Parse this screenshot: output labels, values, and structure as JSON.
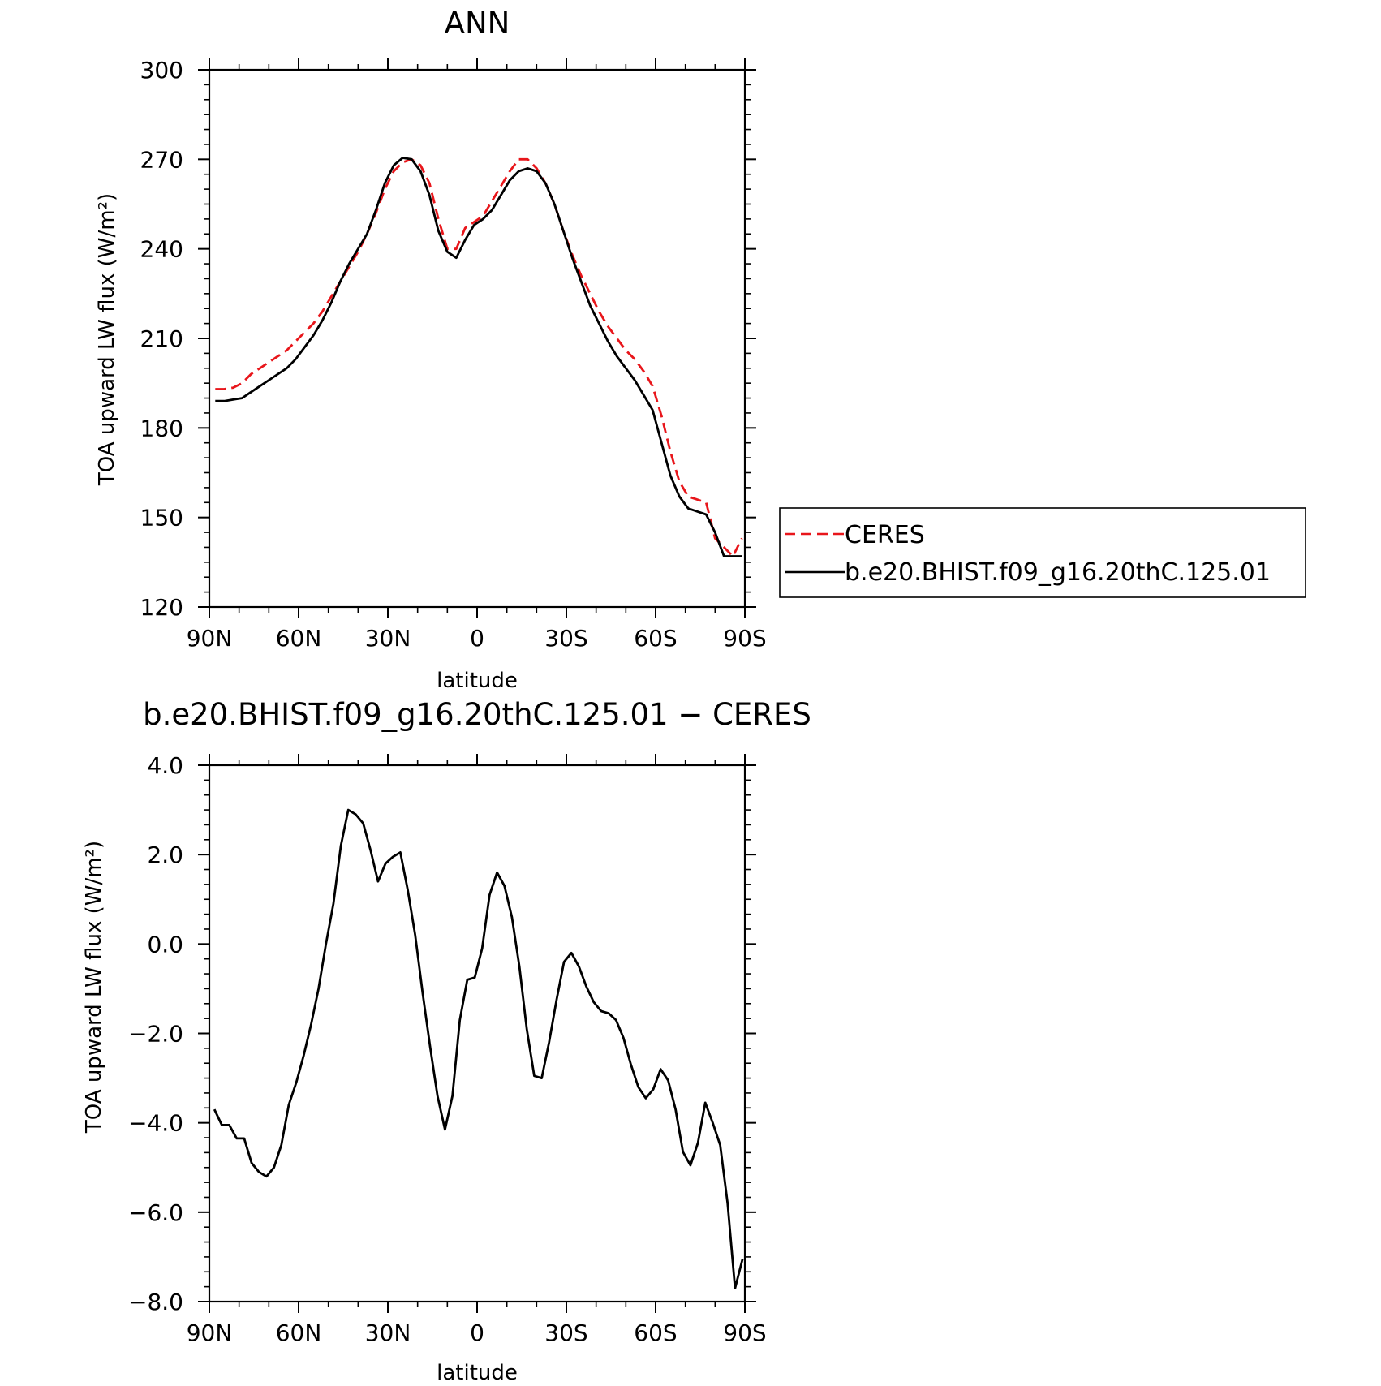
{
  "chart_data": [
    {
      "type": "line",
      "title": "ANN",
      "xlabel": "latitude",
      "ylabel": "TOA upward LW flux (W/m²)",
      "xlim": [
        90,
        -90
      ],
      "ylim": [
        120,
        300
      ],
      "x_ticks": [
        "90N",
        "60N",
        "30N",
        "0",
        "30S",
        "60S",
        "90S"
      ],
      "y_ticks": [
        "120",
        "150",
        "180",
        "210",
        "240",
        "270",
        "300"
      ],
      "grid": false,
      "legend": "right, boxed",
      "series": [
        {
          "name": "CERES",
          "color": "#e8161b",
          "dash": "dashed",
          "x": [
            88,
            85,
            82,
            79,
            76,
            73,
            70,
            67,
            64,
            61,
            58,
            55,
            52,
            49,
            46,
            43,
            40,
            37,
            34,
            31,
            28,
            25,
            22,
            19,
            16,
            13,
            10,
            7,
            4,
            1,
            -2,
            -5,
            -8,
            -11,
            -14,
            -17,
            -20,
            -23,
            -26,
            -29,
            -32,
            -35,
            -38,
            -41,
            -44,
            -47,
            -50,
            -53,
            -56,
            -59,
            -62,
            -65,
            -68,
            -71,
            -74,
            -77,
            -80,
            -83,
            -86,
            -89
          ],
          "y": [
            193,
            193,
            193.5,
            195,
            198,
            200,
            202,
            204,
            206,
            209,
            212,
            215,
            219,
            224,
            229,
            234,
            239,
            245,
            252,
            260,
            266,
            269,
            270,
            268,
            262,
            250,
            240,
            240,
            247,
            249,
            251,
            256,
            261,
            266,
            270,
            270,
            267,
            262,
            255,
            246,
            238,
            231,
            225,
            219,
            214,
            210,
            206,
            203,
            199,
            194,
            184,
            172,
            162,
            157,
            156,
            155,
            143,
            140,
            137,
            143
          ]
        },
        {
          "name": "b.e20.BHIST.f09_g16.20thC.125.01",
          "color": "#000000",
          "dash": "solid",
          "x": [
            88,
            85,
            82,
            79,
            76,
            73,
            70,
            67,
            64,
            61,
            58,
            55,
            52,
            49,
            46,
            43,
            40,
            37,
            34,
            31,
            28,
            25,
            22,
            19,
            16,
            13,
            10,
            7,
            4,
            1,
            -2,
            -5,
            -8,
            -11,
            -14,
            -17,
            -20,
            -23,
            -26,
            -29,
            -32,
            -35,
            -38,
            -41,
            -44,
            -47,
            -50,
            -53,
            -56,
            -59,
            -62,
            -65,
            -68,
            -71,
            -74,
            -77,
            -80,
            -83,
            -86,
            -89
          ],
          "y": [
            189,
            189,
            189.5,
            190,
            192,
            194,
            196,
            198,
            200,
            203,
            207,
            211,
            216,
            222,
            229,
            235,
            240,
            245,
            253,
            262,
            268,
            270.5,
            270,
            266,
            258,
            246,
            239,
            237,
            243,
            248,
            250,
            253,
            258,
            263,
            266,
            267,
            266,
            262,
            255,
            246,
            237,
            229,
            221,
            215,
            209,
            204,
            200,
            196,
            191,
            186,
            175,
            164,
            157,
            153,
            152,
            151,
            145,
            137,
            137,
            137
          ]
        }
      ]
    },
    {
      "type": "line",
      "title": "b.e20.BHIST.f09_g16.20thC.125.01 − CERES",
      "xlabel": "latitude",
      "ylabel": "TOA upward LW flux (W/m²)",
      "xlim": [
        90,
        -90
      ],
      "ylim": [
        -8,
        4
      ],
      "x_ticks": [
        "90N",
        "60N",
        "30N",
        "0",
        "30S",
        "60S",
        "90S"
      ],
      "y_ticks": [
        "4.0",
        "2.0",
        "0.0",
        "−2.0",
        "−4.0",
        "−6.0",
        "−8.0"
      ],
      "grid": false,
      "series": [
        {
          "color": "#000000",
          "dash": "solid",
          "x": [
            88.3,
            85.8,
            83.3,
            80.8,
            78.3,
            75.8,
            73.3,
            70.8,
            68.3,
            65.8,
            63.3,
            60.8,
            58.3,
            55.8,
            53.3,
            50.8,
            48.3,
            45.8,
            43.3,
            40.8,
            38.3,
            35.8,
            33.3,
            30.8,
            28.3,
            25.8,
            23.3,
            20.8,
            18.3,
            15.8,
            13.3,
            10.8,
            8.3,
            5.8,
            3.3,
            0.8,
            -1.7,
            -4.2,
            -6.7,
            -9.2,
            -11.7,
            -14.2,
            -16.7,
            -19.2,
            -21.7,
            -24.2,
            -26.7,
            -29.2,
            -31.7,
            -34.2,
            -36.7,
            -39.2,
            -41.7,
            -44.2,
            -46.7,
            -49.2,
            -51.7,
            -54.2,
            -56.7,
            -59.2,
            -61.7,
            -64.2,
            -66.7,
            -69.2,
            -71.7,
            -74.2,
            -76.7,
            -79.2,
            -81.7,
            -84.2,
            -86.7,
            -89.2
          ],
          "y": [
            -3.7,
            -4.05,
            -4.05,
            -4.35,
            -4.35,
            -4.9,
            -5.1,
            -5.2,
            -5.0,
            -4.5,
            -3.6,
            -3.1,
            -2.5,
            -1.8,
            -1.0,
            0.0,
            0.9,
            2.2,
            3.0,
            2.9,
            2.7,
            2.1,
            1.4,
            1.8,
            1.95,
            2.05,
            1.2,
            0.2,
            -1.1,
            -2.3,
            -3.4,
            -4.15,
            -3.4,
            -1.7,
            -0.8,
            -0.75,
            -0.1,
            1.1,
            1.6,
            1.3,
            0.6,
            -0.5,
            -1.9,
            -2.95,
            -3.0,
            -2.2,
            -1.25,
            -0.4,
            -0.2,
            -0.5,
            -0.95,
            -1.3,
            -1.5,
            -1.55,
            -1.7,
            -2.1,
            -2.7,
            -3.2,
            -3.45,
            -3.25,
            -2.8,
            -3.05,
            -3.7,
            -4.65,
            -4.95,
            -4.45,
            -3.55,
            -4.0,
            -4.5,
            -5.8,
            -7.7,
            -7.05
          ]
        }
      ]
    }
  ]
}
